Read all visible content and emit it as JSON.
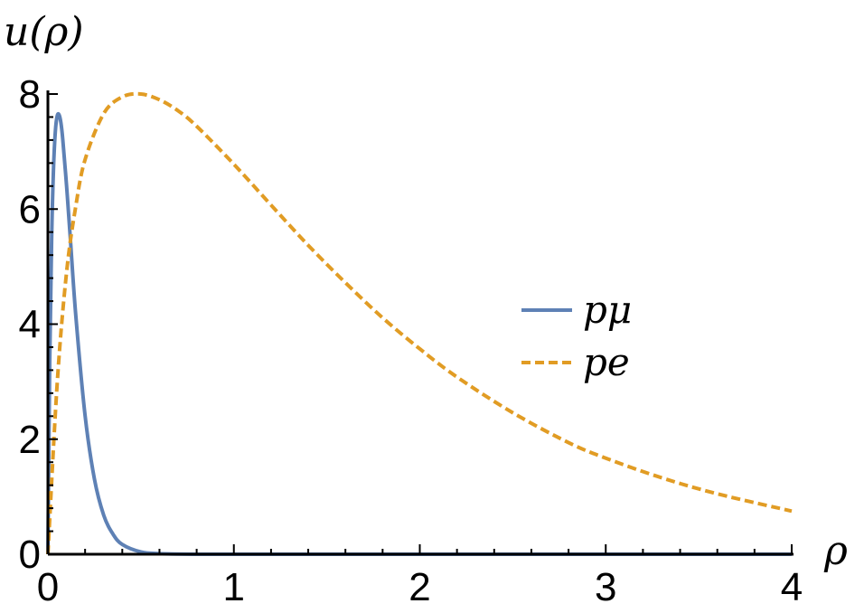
{
  "chart_data": {
    "type": "line",
    "title": "",
    "xlabel": "ρ",
    "ylabel": "u(ρ)",
    "xlim": [
      0,
      4
    ],
    "ylim": [
      0,
      8
    ],
    "x_ticks": [
      "0",
      "1",
      "2",
      "3",
      "4"
    ],
    "y_ticks": [
      "0",
      "2",
      "4",
      "6",
      "8"
    ],
    "grid": false,
    "legend_position": "right",
    "series": [
      {
        "name": "pμ",
        "color": "#5e81b5",
        "style": "solid",
        "x": [
          0,
          0.01,
          0.02,
          0.03,
          0.04,
          0.05,
          0.06,
          0.07,
          0.08,
          0.1,
          0.12,
          0.15,
          0.2,
          0.25,
          0.3,
          0.35,
          0.4,
          0.5,
          0.6,
          0.8,
          1.0,
          1.5,
          2.0,
          3.0,
          4.0
        ],
        "y": [
          0,
          3.38,
          5.47,
          6.69,
          7.35,
          7.62,
          7.64,
          7.5,
          7.21,
          6.42,
          5.52,
          4.15,
          2.41,
          1.31,
          0.68,
          0.35,
          0.17,
          0.04,
          0.01,
          0,
          0,
          0,
          0,
          0,
          0
        ]
      },
      {
        "name": "pe",
        "color": "#e19c24",
        "style": "dashed",
        "x": [
          0,
          0.05,
          0.1,
          0.15,
          0.2,
          0.3,
          0.4,
          0.5,
          0.6,
          0.7,
          0.8,
          1.0,
          1.2,
          1.4,
          1.6,
          1.8,
          2.0,
          2.2,
          2.5,
          2.8,
          3.0,
          3.3,
          3.6,
          4.0
        ],
        "y": [
          0,
          2.97,
          4.89,
          6.05,
          6.86,
          7.66,
          7.95,
          8.0,
          7.9,
          7.71,
          7.44,
          6.78,
          6.07,
          5.37,
          4.72,
          4.11,
          3.57,
          3.08,
          2.46,
          1.94,
          1.67,
          1.33,
          1.05,
          0.75
        ]
      }
    ]
  }
}
